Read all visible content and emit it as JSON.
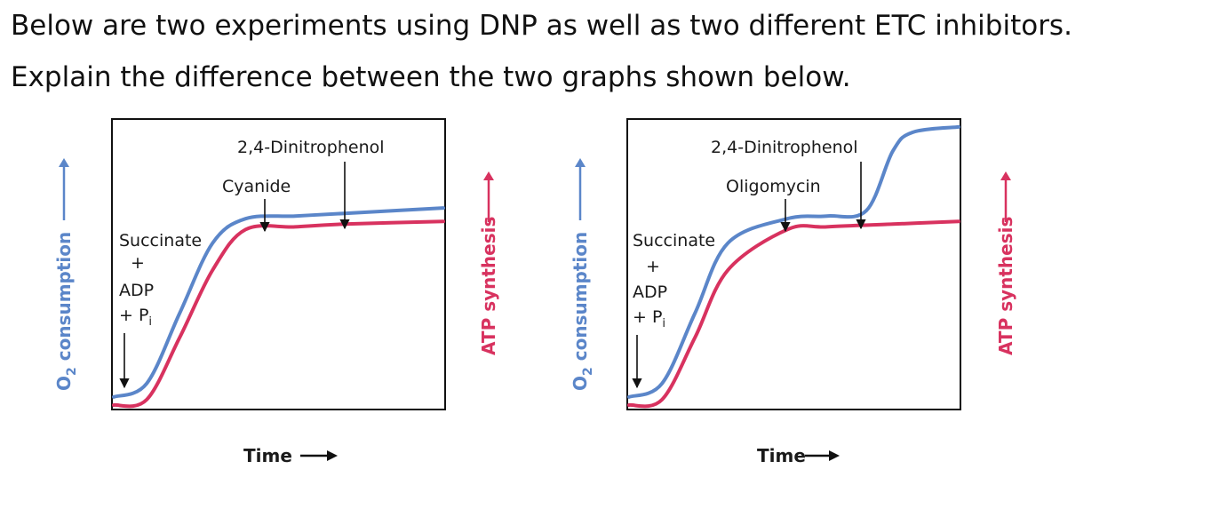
{
  "question": {
    "line1": "Below are two experiments using DNP as well as two different ETC inhibitors.",
    "line2": "Explain the difference between the two graphs shown below."
  },
  "colors": {
    "o2": "#5b86c9",
    "atp": "#d8325f",
    "axis": "#111111"
  },
  "chart_data": [
    {
      "type": "line",
      "title": "",
      "xlabel": "Time",
      "ylabel_left": "O2 consumption",
      "ylabel_right": "ATP synthesis",
      "x_ticks": [],
      "series": [
        {
          "name": "O2 consumption",
          "color": "#5b86c9",
          "points": [
            [
              0,
              0.03
            ],
            [
              0.1,
              0.08
            ],
            [
              0.2,
              0.34
            ],
            [
              0.3,
              0.6
            ],
            [
              0.4,
              0.69
            ],
            [
              0.55,
              0.7
            ],
            [
              0.7,
              0.71
            ],
            [
              1.0,
              0.73
            ]
          ]
        },
        {
          "name": "ATP synthesis",
          "color": "#d8325f",
          "points": [
            [
              0,
              0.0
            ],
            [
              0.1,
              0.02
            ],
            [
              0.2,
              0.25
            ],
            [
              0.3,
              0.5
            ],
            [
              0.4,
              0.65
            ],
            [
              0.55,
              0.66
            ],
            [
              0.7,
              0.67
            ],
            [
              1.0,
              0.68
            ]
          ]
        }
      ],
      "annotations": [
        {
          "text": [
            "Succinate",
            "+",
            "ADP",
            "+ P"
          ],
          "subscript": "i",
          "x": 0.02
        },
        {
          "text": [
            "Cyanide"
          ],
          "x": 0.45
        },
        {
          "text": [
            "2,4-Dinitrophenol"
          ],
          "x": 0.7
        }
      ]
    },
    {
      "type": "line",
      "title": "",
      "xlabel": "Time",
      "ylabel_left": "O2 consumption",
      "ylabel_right": "ATP synthesis",
      "x_ticks": [],
      "series": [
        {
          "name": "O2 consumption",
          "color": "#5b86c9",
          "points": [
            [
              0,
              0.03
            ],
            [
              0.1,
              0.08
            ],
            [
              0.2,
              0.34
            ],
            [
              0.3,
              0.6
            ],
            [
              0.48,
              0.69
            ],
            [
              0.6,
              0.7
            ],
            [
              0.72,
              0.72
            ],
            [
              0.8,
              0.94
            ],
            [
              0.86,
              1.01
            ],
            [
              1.0,
              1.03
            ]
          ]
        },
        {
          "name": "ATP synthesis",
          "color": "#d8325f",
          "points": [
            [
              0,
              0.0
            ],
            [
              0.1,
              0.02
            ],
            [
              0.2,
              0.25
            ],
            [
              0.3,
              0.5
            ],
            [
              0.48,
              0.65
            ],
            [
              0.6,
              0.66
            ],
            [
              0.8,
              0.67
            ],
            [
              1.0,
              0.68
            ]
          ]
        }
      ],
      "annotations": [
        {
          "text": [
            "Succinate",
            "+",
            "ADP",
            "+ P"
          ],
          "subscript": "i",
          "x": 0.02
        },
        {
          "text": [
            "Oligomycin"
          ],
          "x": 0.48
        },
        {
          "text": [
            "2,4-Dinitrophenol"
          ],
          "x": 0.72
        }
      ]
    }
  ],
  "labels": {
    "o2_main": "O",
    "o2_sub": "2",
    "o2_rest": " consumption",
    "atp": "ATP synthesis",
    "time1": "Time",
    "time2": "Time",
    "succinate": "Succinate",
    "plus": "+",
    "adp": "ADP",
    "pi_main": "+ P",
    "pi_sub": "i",
    "cyanide": "Cyanide",
    "oligomycin": "Oligomycin",
    "dnp": "2,4-Dinitrophenol"
  }
}
